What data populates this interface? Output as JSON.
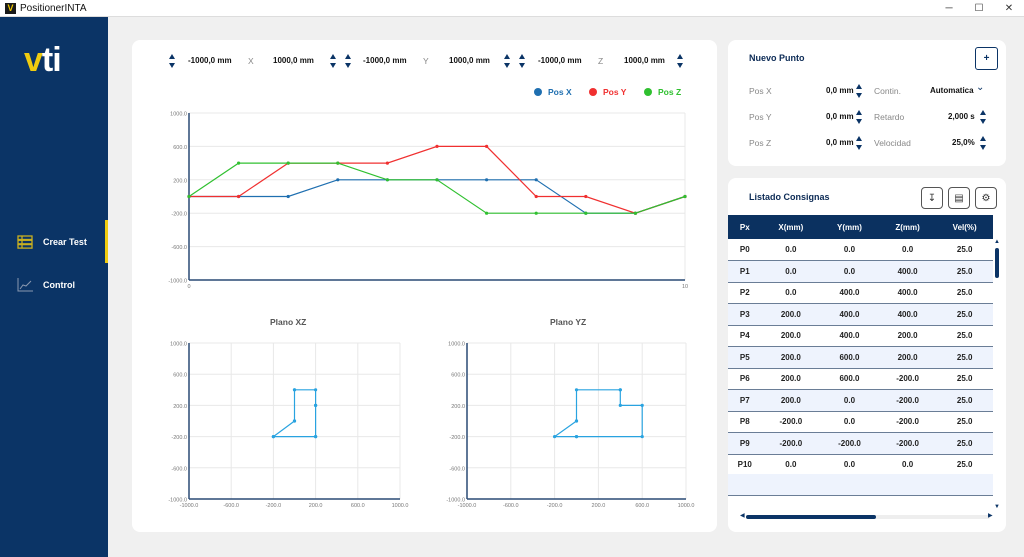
{
  "window": {
    "title": "PositionerINTA",
    "app_icon": "V",
    "minimize": "─",
    "maximize": "☐",
    "close": "✕"
  },
  "sidebar": {
    "logo": {
      "v": "v",
      "ti": "ti"
    },
    "items": [
      {
        "label": "Crear Test",
        "icon": "list-icon",
        "active": true
      },
      {
        "label": "Control",
        "icon": "chart-line-icon",
        "active": false
      }
    ]
  },
  "ranges": {
    "x": {
      "min": "-1000,0 mm",
      "label": "X",
      "max": "1000,0 mm"
    },
    "y": {
      "min": "-1000,0 mm",
      "label": "Y",
      "max": "1000,0 mm"
    },
    "z": {
      "min": "-1000,0 mm",
      "label": "Z",
      "max": "1000,0 mm"
    }
  },
  "colors": {
    "posx": "#1f6fb0",
    "posy": "#f03030",
    "posz": "#30c030",
    "plane": "#29a3e0",
    "navy": "#0b3466",
    "accent": "#f0cc10"
  },
  "nuevo_punto": {
    "title": "Nuevo Punto",
    "add_label": "+",
    "pos_x_label": "Pos X",
    "pos_x": "0,0 mm",
    "pos_y_label": "Pos Y",
    "pos_y": "0,0 mm",
    "pos_z_label": "Pos Z",
    "pos_z": "0,0 mm",
    "contin_label": "Contin.",
    "contin": "Automatica",
    "retardo_label": "Retardo",
    "retardo": "2,000 s",
    "velocidad_label": "Velocidad",
    "velocidad": "25,0%"
  },
  "listado": {
    "title": "Listado Consignas",
    "headers": [
      "Px",
      "X(mm)",
      "Y(mm)",
      "Z(mm)",
      "Vel(%)"
    ],
    "rows": [
      [
        "P0",
        "0.0",
        "0.0",
        "0.0",
        "25.0"
      ],
      [
        "P1",
        "0.0",
        "0.0",
        "400.0",
        "25.0"
      ],
      [
        "P2",
        "0.0",
        "400.0",
        "400.0",
        "25.0"
      ],
      [
        "P3",
        "200.0",
        "400.0",
        "400.0",
        "25.0"
      ],
      [
        "P4",
        "200.0",
        "400.0",
        "200.0",
        "25.0"
      ],
      [
        "P5",
        "200.0",
        "600.0",
        "200.0",
        "25.0"
      ],
      [
        "P6",
        "200.0",
        "600.0",
        "-200.0",
        "25.0"
      ],
      [
        "P7",
        "200.0",
        "0.0",
        "-200.0",
        "25.0"
      ],
      [
        "P8",
        "-200.0",
        "0.0",
        "-200.0",
        "25.0"
      ],
      [
        "P9",
        "-200.0",
        "-200.0",
        "-200.0",
        "25.0"
      ],
      [
        "P10",
        "0.0",
        "0.0",
        "0.0",
        "25.0"
      ]
    ]
  },
  "chart_data": [
    {
      "type": "line",
      "title": "",
      "x": [
        0,
        1,
        2,
        3,
        4,
        5,
        6,
        7,
        8,
        9,
        10
      ],
      "xlim": [
        0,
        10
      ],
      "xticks": [
        "0",
        "10"
      ],
      "ylim": [
        -1000,
        1000
      ],
      "yticks": [
        "1000.0",
        "600.0",
        "200.0",
        "-200.0",
        "-600.0",
        "-1000.0"
      ],
      "legend": "top-right",
      "series": [
        {
          "name": "Pos X",
          "values": [
            0,
            0,
            0,
            200,
            200,
            200,
            200,
            200,
            -200,
            -200,
            0
          ]
        },
        {
          "name": "Pos Y",
          "values": [
            0,
            0,
            400,
            400,
            400,
            600,
            600,
            0,
            0,
            -200,
            0
          ]
        },
        {
          "name": "Pos Z",
          "values": [
            0,
            400,
            400,
            400,
            200,
            200,
            -200,
            -200,
            -200,
            -200,
            0
          ]
        }
      ]
    },
    {
      "type": "line",
      "title": "Plano XZ",
      "xlim": [
        -1000,
        1000
      ],
      "ylim": [
        -1000,
        1000
      ],
      "xticks": [
        "-1000.0",
        "-600.0",
        "-200.0",
        "200.0",
        "600.0",
        "1000.0"
      ],
      "yticks": [
        "1000.0",
        "600.0",
        "200.0",
        "-200.0",
        "-600.0",
        "-1000.0"
      ],
      "x": [
        0,
        0,
        0,
        200,
        200,
        200,
        200,
        200,
        -200,
        -200,
        0
      ],
      "y": [
        0,
        400,
        400,
        400,
        200,
        200,
        -200,
        -200,
        -200,
        -200,
        0
      ]
    },
    {
      "type": "line",
      "title": "Plano YZ",
      "xlim": [
        -1000,
        1000
      ],
      "ylim": [
        -1000,
        1000
      ],
      "xticks": [
        "-1000.0",
        "-600.0",
        "-200.0",
        "200.0",
        "600.0",
        "1000.0"
      ],
      "yticks": [
        "1000.0",
        "600.0",
        "200.0",
        "-200.0",
        "-600.0",
        "-1000.0"
      ],
      "x": [
        0,
        0,
        400,
        400,
        400,
        600,
        600,
        0,
        0,
        -200,
        0
      ],
      "y": [
        0,
        400,
        400,
        400,
        200,
        200,
        -200,
        -200,
        -200,
        -200,
        0
      ]
    }
  ]
}
